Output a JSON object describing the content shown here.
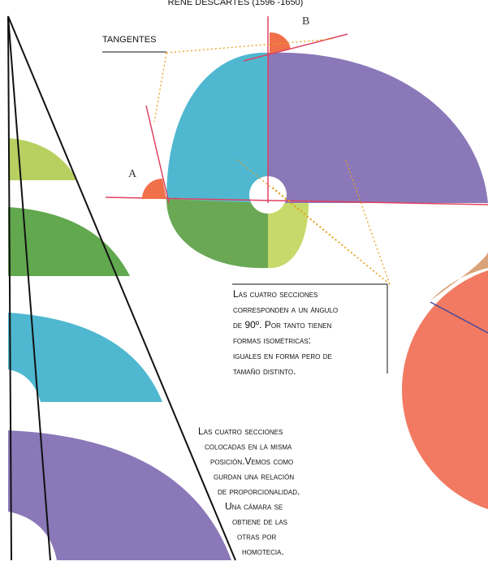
{
  "header": {
    "title": "RENÉ DESCARTES (1596 -1650)"
  },
  "labels": {
    "tangents": "TANGENTES",
    "a": "A",
    "b": "B"
  },
  "notes": [
    {
      "lines": [
        "Las cuatro secciones",
        "corresponden a un ángulo",
        "de 90º. Por tanto tienen",
        "formas isométricas:",
        "iguales en forma pero de",
        "tamaño distinto."
      ]
    },
    {
      "lines": [
        "Las cuatro secciones",
        "colocadas en la misma",
        "posición.Vemos como",
        "gurdan una relación",
        "de proporcionalidad.",
        "Una cámara se",
        "obtiene de las",
        "otras por",
        "homotecia."
      ]
    }
  ]
}
